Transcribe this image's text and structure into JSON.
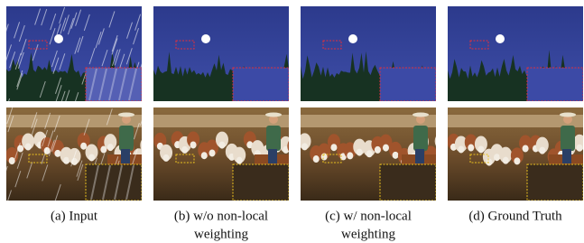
{
  "figure": {
    "captions": [
      {
        "lines": [
          "(a) Input"
        ]
      },
      {
        "lines": [
          "(b) w/o non-local",
          "weighting"
        ]
      },
      {
        "lines": [
          "(c) w/ non-local",
          "weighting"
        ]
      },
      {
        "lines": [
          "(d) Ground Truth"
        ]
      }
    ]
  }
}
